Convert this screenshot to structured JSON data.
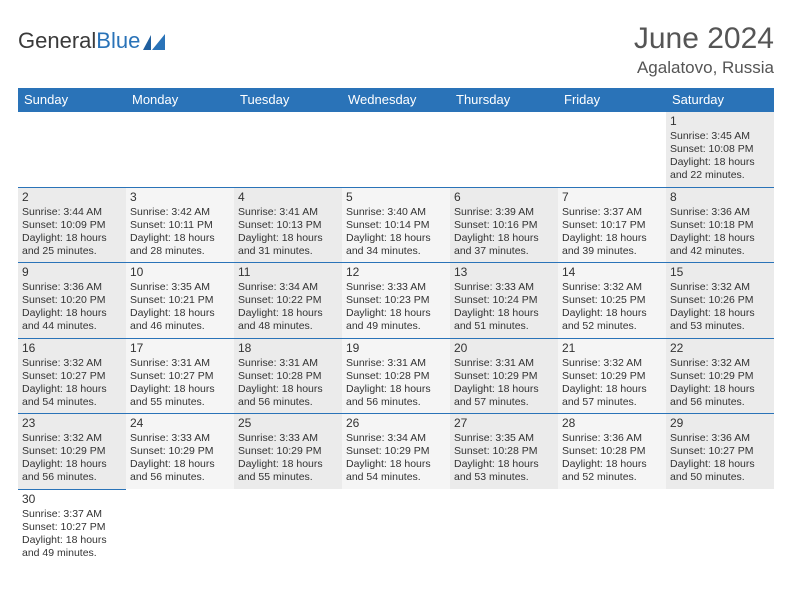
{
  "brand": {
    "part1": "General",
    "part2": "Blue",
    "color_dark": "#3a3a3a",
    "color_blue": "#2a73b8"
  },
  "title": "June 2024",
  "location": "Agalatovo, Russia",
  "header_bg": "#2a73b8",
  "header_fg": "#ffffff",
  "cell_border": "#2a73b8",
  "shade_a": "#ebebeb",
  "shade_b": "#f5f5f5",
  "text_color": "#333333",
  "weekdays": [
    "Sunday",
    "Monday",
    "Tuesday",
    "Wednesday",
    "Thursday",
    "Friday",
    "Saturday"
  ],
  "weeks": [
    [
      null,
      null,
      null,
      null,
      null,
      null,
      {
        "n": "1",
        "sunrise": "Sunrise: 3:45 AM",
        "sunset": "Sunset: 10:08 PM",
        "day1": "Daylight: 18 hours",
        "day2": "and 22 minutes."
      }
    ],
    [
      {
        "n": "2",
        "sunrise": "Sunrise: 3:44 AM",
        "sunset": "Sunset: 10:09 PM",
        "day1": "Daylight: 18 hours",
        "day2": "and 25 minutes."
      },
      {
        "n": "3",
        "sunrise": "Sunrise: 3:42 AM",
        "sunset": "Sunset: 10:11 PM",
        "day1": "Daylight: 18 hours",
        "day2": "and 28 minutes."
      },
      {
        "n": "4",
        "sunrise": "Sunrise: 3:41 AM",
        "sunset": "Sunset: 10:13 PM",
        "day1": "Daylight: 18 hours",
        "day2": "and 31 minutes."
      },
      {
        "n": "5",
        "sunrise": "Sunrise: 3:40 AM",
        "sunset": "Sunset: 10:14 PM",
        "day1": "Daylight: 18 hours",
        "day2": "and 34 minutes."
      },
      {
        "n": "6",
        "sunrise": "Sunrise: 3:39 AM",
        "sunset": "Sunset: 10:16 PM",
        "day1": "Daylight: 18 hours",
        "day2": "and 37 minutes."
      },
      {
        "n": "7",
        "sunrise": "Sunrise: 3:37 AM",
        "sunset": "Sunset: 10:17 PM",
        "day1": "Daylight: 18 hours",
        "day2": "and 39 minutes."
      },
      {
        "n": "8",
        "sunrise": "Sunrise: 3:36 AM",
        "sunset": "Sunset: 10:18 PM",
        "day1": "Daylight: 18 hours",
        "day2": "and 42 minutes."
      }
    ],
    [
      {
        "n": "9",
        "sunrise": "Sunrise: 3:36 AM",
        "sunset": "Sunset: 10:20 PM",
        "day1": "Daylight: 18 hours",
        "day2": "and 44 minutes."
      },
      {
        "n": "10",
        "sunrise": "Sunrise: 3:35 AM",
        "sunset": "Sunset: 10:21 PM",
        "day1": "Daylight: 18 hours",
        "day2": "and 46 minutes."
      },
      {
        "n": "11",
        "sunrise": "Sunrise: 3:34 AM",
        "sunset": "Sunset: 10:22 PM",
        "day1": "Daylight: 18 hours",
        "day2": "and 48 minutes."
      },
      {
        "n": "12",
        "sunrise": "Sunrise: 3:33 AM",
        "sunset": "Sunset: 10:23 PM",
        "day1": "Daylight: 18 hours",
        "day2": "and 49 minutes."
      },
      {
        "n": "13",
        "sunrise": "Sunrise: 3:33 AM",
        "sunset": "Sunset: 10:24 PM",
        "day1": "Daylight: 18 hours",
        "day2": "and 51 minutes."
      },
      {
        "n": "14",
        "sunrise": "Sunrise: 3:32 AM",
        "sunset": "Sunset: 10:25 PM",
        "day1": "Daylight: 18 hours",
        "day2": "and 52 minutes."
      },
      {
        "n": "15",
        "sunrise": "Sunrise: 3:32 AM",
        "sunset": "Sunset: 10:26 PM",
        "day1": "Daylight: 18 hours",
        "day2": "and 53 minutes."
      }
    ],
    [
      {
        "n": "16",
        "sunrise": "Sunrise: 3:32 AM",
        "sunset": "Sunset: 10:27 PM",
        "day1": "Daylight: 18 hours",
        "day2": "and 54 minutes."
      },
      {
        "n": "17",
        "sunrise": "Sunrise: 3:31 AM",
        "sunset": "Sunset: 10:27 PM",
        "day1": "Daylight: 18 hours",
        "day2": "and 55 minutes."
      },
      {
        "n": "18",
        "sunrise": "Sunrise: 3:31 AM",
        "sunset": "Sunset: 10:28 PM",
        "day1": "Daylight: 18 hours",
        "day2": "and 56 minutes."
      },
      {
        "n": "19",
        "sunrise": "Sunrise: 3:31 AM",
        "sunset": "Sunset: 10:28 PM",
        "day1": "Daylight: 18 hours",
        "day2": "and 56 minutes."
      },
      {
        "n": "20",
        "sunrise": "Sunrise: 3:31 AM",
        "sunset": "Sunset: 10:29 PM",
        "day1": "Daylight: 18 hours",
        "day2": "and 57 minutes."
      },
      {
        "n": "21",
        "sunrise": "Sunrise: 3:32 AM",
        "sunset": "Sunset: 10:29 PM",
        "day1": "Daylight: 18 hours",
        "day2": "and 57 minutes."
      },
      {
        "n": "22",
        "sunrise": "Sunrise: 3:32 AM",
        "sunset": "Sunset: 10:29 PM",
        "day1": "Daylight: 18 hours",
        "day2": "and 56 minutes."
      }
    ],
    [
      {
        "n": "23",
        "sunrise": "Sunrise: 3:32 AM",
        "sunset": "Sunset: 10:29 PM",
        "day1": "Daylight: 18 hours",
        "day2": "and 56 minutes."
      },
      {
        "n": "24",
        "sunrise": "Sunrise: 3:33 AM",
        "sunset": "Sunset: 10:29 PM",
        "day1": "Daylight: 18 hours",
        "day2": "and 56 minutes."
      },
      {
        "n": "25",
        "sunrise": "Sunrise: 3:33 AM",
        "sunset": "Sunset: 10:29 PM",
        "day1": "Daylight: 18 hours",
        "day2": "and 55 minutes."
      },
      {
        "n": "26",
        "sunrise": "Sunrise: 3:34 AM",
        "sunset": "Sunset: 10:29 PM",
        "day1": "Daylight: 18 hours",
        "day2": "and 54 minutes."
      },
      {
        "n": "27",
        "sunrise": "Sunrise: 3:35 AM",
        "sunset": "Sunset: 10:28 PM",
        "day1": "Daylight: 18 hours",
        "day2": "and 53 minutes."
      },
      {
        "n": "28",
        "sunrise": "Sunrise: 3:36 AM",
        "sunset": "Sunset: 10:28 PM",
        "day1": "Daylight: 18 hours",
        "day2": "and 52 minutes."
      },
      {
        "n": "29",
        "sunrise": "Sunrise: 3:36 AM",
        "sunset": "Sunset: 10:27 PM",
        "day1": "Daylight: 18 hours",
        "day2": "and 50 minutes."
      }
    ],
    [
      {
        "n": "30",
        "sunrise": "Sunrise: 3:37 AM",
        "sunset": "Sunset: 10:27 PM",
        "day1": "Daylight: 18 hours",
        "day2": "and 49 minutes."
      },
      null,
      null,
      null,
      null,
      null,
      null
    ]
  ]
}
